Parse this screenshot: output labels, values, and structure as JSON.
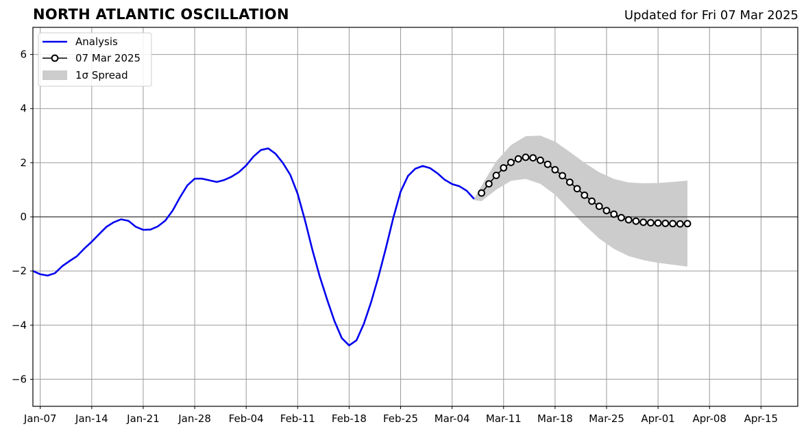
{
  "header": {
    "title": "NORTH ATLANTIC OSCILLATION",
    "updated": "Updated for Fri 07 Mar 2025"
  },
  "colors": {
    "analysis": "#0000ee",
    "forecast": "#000000",
    "spread": "#cccccc",
    "grid": "#999999",
    "zero_line": "#555555"
  },
  "chart_data": {
    "type": "line",
    "title": "NORTH ATLANTIC OSCILLATION",
    "xlabel": "",
    "ylabel": "",
    "xlim": [
      "2025-01-06",
      "2025-04-20"
    ],
    "ylim": [
      -7,
      7
    ],
    "grid": true,
    "legend_position": "top-left",
    "x_ticks": [
      {
        "date": "2025-01-07",
        "label": "Jan-07"
      },
      {
        "date": "2025-01-14",
        "label": "Jan-14"
      },
      {
        "date": "2025-01-21",
        "label": "Jan-21"
      },
      {
        "date": "2025-01-28",
        "label": "Jan-28"
      },
      {
        "date": "2025-02-04",
        "label": "Feb-04"
      },
      {
        "date": "2025-02-11",
        "label": "Feb-11"
      },
      {
        "date": "2025-02-18",
        "label": "Feb-18"
      },
      {
        "date": "2025-02-25",
        "label": "Feb-25"
      },
      {
        "date": "2025-03-04",
        "label": "Mar-04"
      },
      {
        "date": "2025-03-11",
        "label": "Mar-11"
      },
      {
        "date": "2025-03-18",
        "label": "Mar-18"
      },
      {
        "date": "2025-03-25",
        "label": "Mar-25"
      },
      {
        "date": "2025-04-01",
        "label": "Apr-01"
      },
      {
        "date": "2025-04-08",
        "label": "Apr-08"
      },
      {
        "date": "2025-04-15",
        "label": "Apr-15"
      }
    ],
    "y_ticks": [
      {
        "value": 6,
        "label": "6"
      },
      {
        "value": 4,
        "label": "4"
      },
      {
        "value": 2,
        "label": "2"
      },
      {
        "value": 0,
        "label": "0"
      },
      {
        "value": -2,
        "label": "−2"
      },
      {
        "value": -4,
        "label": "−4"
      },
      {
        "value": -6,
        "label": "−6"
      }
    ],
    "legend": [
      {
        "label": "Analysis",
        "kind": "line"
      },
      {
        "label": "07 Mar 2025",
        "kind": "marker-line"
      },
      {
        "label": "1σ Spread",
        "kind": "patch"
      }
    ],
    "series": [
      {
        "name": "Analysis",
        "x": [
          "2025-01-06",
          "2025-01-07",
          "2025-01-08",
          "2025-01-09",
          "2025-01-10",
          "2025-01-11",
          "2025-01-12",
          "2025-01-13",
          "2025-01-14",
          "2025-01-15",
          "2025-01-16",
          "2025-01-17",
          "2025-01-18",
          "2025-01-19",
          "2025-01-20",
          "2025-01-21",
          "2025-01-22",
          "2025-01-23",
          "2025-01-24",
          "2025-01-25",
          "2025-01-26",
          "2025-01-27",
          "2025-01-28",
          "2025-01-29",
          "2025-01-30",
          "2025-01-31",
          "2025-02-01",
          "2025-02-02",
          "2025-02-03",
          "2025-02-04",
          "2025-02-05",
          "2025-02-06",
          "2025-02-07",
          "2025-02-08",
          "2025-02-09",
          "2025-02-10",
          "2025-02-11",
          "2025-02-12",
          "2025-02-13",
          "2025-02-14",
          "2025-02-15",
          "2025-02-16",
          "2025-02-17",
          "2025-02-18",
          "2025-02-19",
          "2025-02-20",
          "2025-02-21",
          "2025-02-22",
          "2025-02-23",
          "2025-02-24",
          "2025-02-25",
          "2025-02-26",
          "2025-02-27",
          "2025-02-28",
          "2025-03-01",
          "2025-03-02",
          "2025-03-03",
          "2025-03-04",
          "2025-03-05",
          "2025-03-06",
          "2025-03-07"
        ],
        "y": [
          -2.0,
          -2.12,
          -2.17,
          -2.08,
          -1.82,
          -1.63,
          -1.45,
          -1.17,
          -0.92,
          -0.64,
          -0.37,
          -0.2,
          -0.09,
          -0.15,
          -0.37,
          -0.48,
          -0.47,
          -0.35,
          -0.14,
          0.23,
          0.72,
          1.16,
          1.41,
          1.41,
          1.35,
          1.29,
          1.36,
          1.48,
          1.65,
          1.9,
          2.23,
          2.47,
          2.53,
          2.33,
          1.99,
          1.55,
          0.85,
          -0.13,
          -1.22,
          -2.2,
          -3.05,
          -3.85,
          -4.48,
          -4.75,
          -4.56,
          -3.95,
          -3.14,
          -2.2,
          -1.15,
          -0.04,
          0.93,
          1.51,
          1.78,
          1.88,
          1.8,
          1.61,
          1.37,
          1.21,
          1.13,
          0.96,
          0.66
        ]
      },
      {
        "name": "07 Mar 2025",
        "x": [
          "2025-03-08",
          "2025-03-09",
          "2025-03-10",
          "2025-03-11",
          "2025-03-12",
          "2025-03-13",
          "2025-03-14",
          "2025-03-15",
          "2025-03-16",
          "2025-03-17",
          "2025-03-18",
          "2025-03-19",
          "2025-03-20",
          "2025-03-21",
          "2025-03-22",
          "2025-03-23",
          "2025-03-24",
          "2025-03-25",
          "2025-03-26",
          "2025-03-27",
          "2025-03-28",
          "2025-03-29",
          "2025-03-30",
          "2025-03-31",
          "2025-04-01",
          "2025-04-02",
          "2025-04-03",
          "2025-04-04",
          "2025-04-05"
        ],
        "y": [
          0.88,
          1.22,
          1.53,
          1.81,
          2.01,
          2.14,
          2.2,
          2.18,
          2.09,
          1.94,
          1.74,
          1.52,
          1.28,
          1.04,
          0.8,
          0.58,
          0.39,
          0.23,
          0.1,
          -0.03,
          -0.11,
          -0.16,
          -0.2,
          -0.22,
          -0.23,
          -0.24,
          -0.25,
          -0.26,
          -0.25
        ]
      }
    ],
    "spread": {
      "name": "1σ Spread",
      "x": [
        "2025-03-07",
        "2025-03-08",
        "2025-03-10",
        "2025-03-12",
        "2025-03-14",
        "2025-03-16",
        "2025-03-18",
        "2025-03-20",
        "2025-03-22",
        "2025-03-24",
        "2025-03-26",
        "2025-03-28",
        "2025-03-30",
        "2025-04-01",
        "2025-04-03",
        "2025-04-05"
      ],
      "upper": [
        0.68,
        1.15,
        2.05,
        2.65,
        2.98,
        3.0,
        2.78,
        2.4,
        2.0,
        1.65,
        1.4,
        1.27,
        1.24,
        1.25,
        1.29,
        1.34
      ],
      "lower": [
        0.62,
        0.58,
        1.0,
        1.33,
        1.4,
        1.22,
        0.82,
        0.25,
        -0.3,
        -0.8,
        -1.18,
        -1.45,
        -1.6,
        -1.7,
        -1.77,
        -1.84
      ]
    }
  }
}
